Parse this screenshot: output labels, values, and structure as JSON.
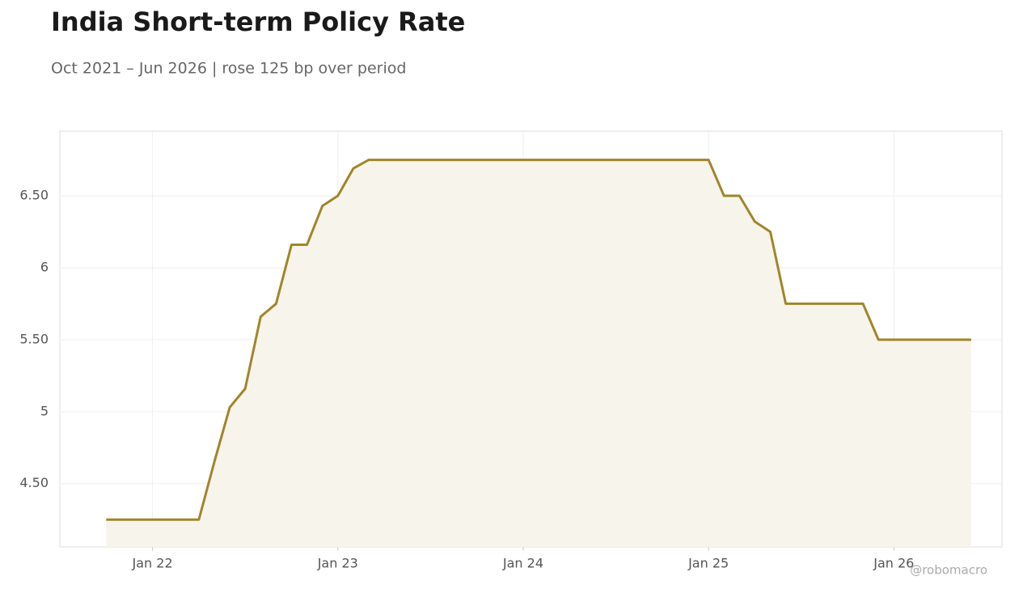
{
  "chart_data": {
    "type": "line",
    "title": "India Short-term Policy Rate",
    "subtitle": "Oct 2021 – Jun 2026 | rose 125 bp over period",
    "watermark": "@robomacro",
    "x": [
      "2021-10",
      "2021-11",
      "2021-12",
      "2022-01",
      "2022-02",
      "2022-03",
      "2022-04",
      "2022-05",
      "2022-06",
      "2022-07",
      "2022-08",
      "2022-09",
      "2022-10",
      "2022-11",
      "2022-12",
      "2023-01",
      "2023-02",
      "2023-03",
      "2023-04",
      "2023-05",
      "2023-06",
      "2023-07",
      "2023-08",
      "2023-09",
      "2023-10",
      "2023-11",
      "2023-12",
      "2024-01",
      "2024-02",
      "2024-03",
      "2024-04",
      "2024-05",
      "2024-06",
      "2024-07",
      "2024-08",
      "2024-09",
      "2024-10",
      "2024-11",
      "2024-12",
      "2025-01",
      "2025-02",
      "2025-03",
      "2025-04",
      "2025-05",
      "2025-06",
      "2025-07",
      "2025-08",
      "2025-09",
      "2025-10",
      "2025-11",
      "2025-12",
      "2026-01",
      "2026-02",
      "2026-03",
      "2026-04",
      "2026-05",
      "2026-06"
    ],
    "series": [
      {
        "name": "Policy Rate",
        "color": "#a0862a",
        "fill": "#f7f4ec",
        "values": [
          4.25,
          4.25,
          4.25,
          4.25,
          4.25,
          4.25,
          4.25,
          4.65,
          5.03,
          5.16,
          5.66,
          5.75,
          6.16,
          6.16,
          6.43,
          6.5,
          6.69,
          6.75,
          6.75,
          6.75,
          6.75,
          6.75,
          6.75,
          6.75,
          6.75,
          6.75,
          6.75,
          6.75,
          6.75,
          6.75,
          6.75,
          6.75,
          6.75,
          6.75,
          6.75,
          6.75,
          6.75,
          6.75,
          6.75,
          6.75,
          6.5,
          6.5,
          6.32,
          6.25,
          5.75,
          5.75,
          5.75,
          5.75,
          5.75,
          5.75,
          5.5,
          5.5,
          5.5,
          5.5,
          5.5,
          5.5,
          5.5
        ]
      }
    ],
    "xlim": [
      "2021-07",
      "2026-08"
    ],
    "xticks": [
      {
        "value": "2022-01",
        "label": "Jan 22"
      },
      {
        "value": "2023-01",
        "label": "Jan 23"
      },
      {
        "value": "2024-01",
        "label": "Jan 24"
      },
      {
        "value": "2025-01",
        "label": "Jan 25"
      },
      {
        "value": "2026-01",
        "label": "Jan 26"
      }
    ],
    "ylim": [
      4.06,
      6.95
    ],
    "yticks": [
      {
        "value": 4.5,
        "label": "4.50"
      },
      5,
      {
        "value": 5.5,
        "label": "5.50"
      },
      6,
      {
        "value": 6.5,
        "label": "6.50"
      }
    ],
    "grid": true
  }
}
